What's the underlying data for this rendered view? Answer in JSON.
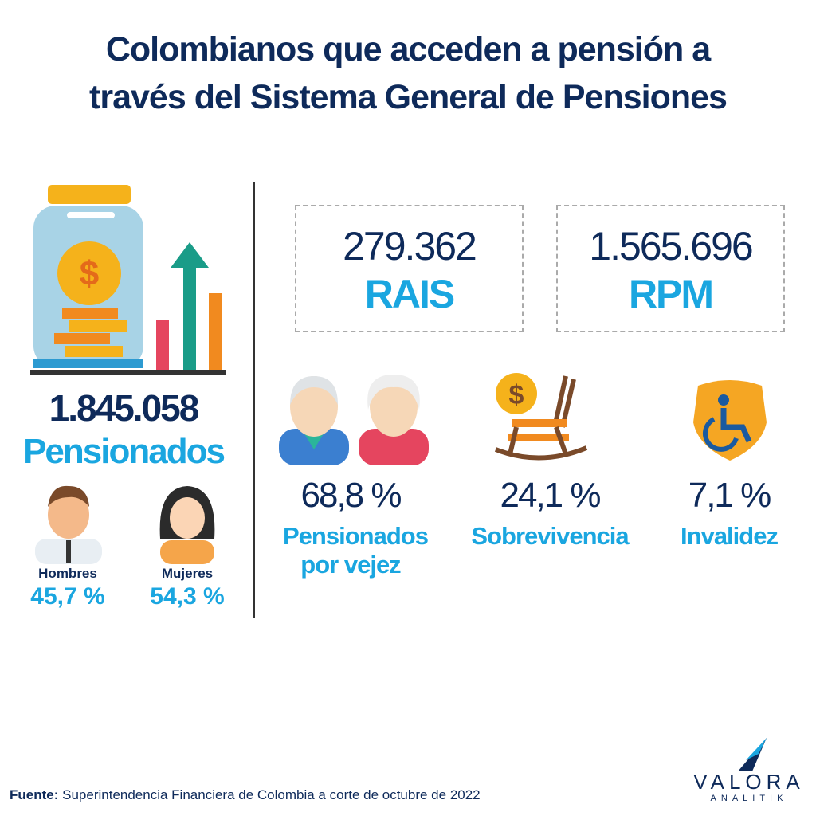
{
  "title": [
    "Colombianos que acceden a pensión a",
    "través del Sistema General de Pensiones"
  ],
  "total": {
    "value": "1.845.058",
    "label": "Pensionados"
  },
  "gender": [
    {
      "label": "Hombres",
      "share": "45,7 %"
    },
    {
      "label": "Mujeres",
      "share": "54,3 %"
    }
  ],
  "regimes": [
    {
      "value": "279.362",
      "label": "RAIS"
    },
    {
      "value": "1.565.696",
      "label": "RPM"
    }
  ],
  "types": [
    {
      "share": "68,8 %",
      "label": "Pensionados por vejez"
    },
    {
      "share": "24,1 %",
      "label": "Sobrevivencia"
    },
    {
      "share": "7,1 %",
      "label": "Invalidez"
    }
  ],
  "source": {
    "label": "Fuente:",
    "text": "Superintendencia Financiera de Colombia a corte de octubre de 2022"
  },
  "logo": {
    "name": "VALORA",
    "tagline": "ANALITIK"
  }
}
